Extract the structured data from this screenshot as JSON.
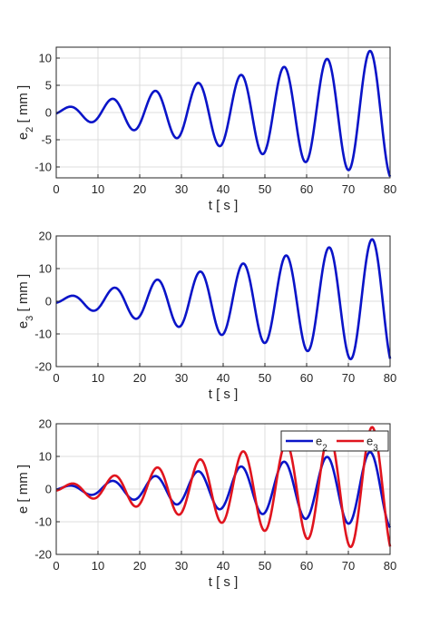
{
  "chart_data": [
    {
      "type": "line",
      "xlabel": "t  [ s ]",
      "ylabel": "e",
      "ylabel_sub": "2",
      "ylabel_unit": "[ mm ]",
      "xlim": [
        0,
        80
      ],
      "ylim": [
        -12,
        12
      ],
      "xticks": [
        "0",
        "10",
        "20",
        "30",
        "40",
        "50",
        "60",
        "70",
        "80"
      ],
      "yticks": [
        "-10",
        "-5",
        "0",
        "5",
        "10"
      ],
      "grid": true,
      "series": [
        {
          "color": "#0a14c8",
          "signal": {
            "amp_start": 0.6,
            "amp_end": 12,
            "period": 10.3,
            "phase": -0.3,
            "growth": 1.0
          }
        }
      ]
    },
    {
      "type": "line",
      "xlabel": "t  [ s ]",
      "ylabel": "e",
      "ylabel_sub": "3",
      "ylabel_unit": "[ mm ]",
      "xlim": [
        0,
        80
      ],
      "ylim": [
        -20,
        20
      ],
      "xticks": [
        "0",
        "10",
        "20",
        "30",
        "40",
        "50",
        "60",
        "70",
        "80"
      ],
      "yticks": [
        "-20",
        "-10",
        "0",
        "10",
        "20"
      ],
      "grid": true,
      "series": [
        {
          "color": "#0a14c8",
          "signal": {
            "amp_start": 0.8,
            "amp_end": 20,
            "period": 10.3,
            "phase": -0.6,
            "growth": 1.0
          }
        }
      ]
    },
    {
      "type": "line",
      "xlabel": "t  [ s ]",
      "ylabel": "e",
      "ylabel_sub": "",
      "ylabel_unit": "[ mm ]",
      "xlim": [
        0,
        80
      ],
      "ylim": [
        -20,
        20
      ],
      "xticks": [
        "0",
        "10",
        "20",
        "30",
        "40",
        "50",
        "60",
        "70",
        "80"
      ],
      "yticks": [
        "-20",
        "-10",
        "0",
        "10",
        "20"
      ],
      "grid": true,
      "legend": "top-right",
      "series": [
        {
          "name": "e",
          "name_sub": "2",
          "color": "#0a14c8",
          "signal": {
            "amp_start": 0.6,
            "amp_end": 12,
            "period": 10.3,
            "phase": -0.3,
            "growth": 1.0
          }
        },
        {
          "name": "e",
          "name_sub": "3",
          "color": "#e0141e",
          "signal": {
            "amp_start": 0.8,
            "amp_end": 20,
            "period": 10.3,
            "phase": -0.6,
            "growth": 1.0
          }
        }
      ]
    }
  ]
}
